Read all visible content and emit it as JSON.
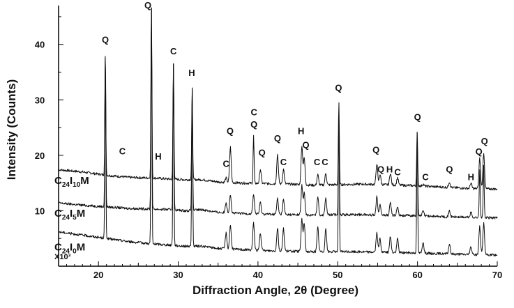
{
  "chart_data": {
    "type": "line",
    "title": "",
    "xlabel": "Diffraction Angle, 2θ (Degree)",
    "ylabel": "Intensity (Counts)",
    "y_multiplier_label": "X10³",
    "xlim": [
      15,
      70
    ],
    "ylim": [
      0,
      47
    ],
    "x_ticks": [
      20,
      30,
      40,
      50,
      60,
      70
    ],
    "y_ticks": [
      10,
      20,
      30,
      40
    ],
    "grid": false,
    "legend": "inline-left",
    "colors": {
      "line": "#111111",
      "axis": "#000000",
      "text": "#111111"
    },
    "peaks": [
      20.86,
      26.64,
      29.4,
      31.75,
      36.0,
      36.54,
      39.45,
      40.3,
      42.45,
      43.2,
      45.5,
      45.8,
      47.5,
      48.5,
      50.14,
      54.9,
      55.3,
      56.6,
      57.5,
      59.96,
      60.7,
      64.0,
      66.7,
      67.8,
      68.3
    ],
    "series": [
      {
        "name": "C24I10M",
        "base": "C",
        "sub1": "24",
        "mid": "I",
        "sub2": "10",
        "tail": "M",
        "baseline": [
          [
            15,
            17.4
          ],
          [
            18,
            17.0
          ],
          [
            21,
            16.4
          ],
          [
            24,
            16.0
          ],
          [
            27,
            15.9
          ],
          [
            29,
            15.7
          ],
          [
            31,
            15.6
          ],
          [
            33,
            15.6
          ],
          [
            35,
            15.2
          ],
          [
            38,
            15.0
          ],
          [
            41,
            14.9
          ],
          [
            44,
            14.8
          ],
          [
            47,
            14.6
          ],
          [
            50,
            14.7
          ],
          [
            53,
            14.8
          ],
          [
            56,
            14.7
          ],
          [
            60,
            14.5
          ],
          [
            64,
            14.2
          ],
          [
            67,
            14.0
          ],
          [
            70,
            13.9
          ]
        ],
        "intensities": [
          38,
          47,
          36.5,
          32,
          15.9,
          21.5,
          23.5,
          17.5,
          20.2,
          17.5,
          21.7,
          19.5,
          16.5,
          16.8,
          29.5,
          18.5,
          16.6,
          16.8,
          16.0,
          24.2,
          14.8,
          15.2,
          15.0,
          19.5,
          20.5
        ]
      },
      {
        "name": "C24I5M",
        "base": "C",
        "sub1": "24",
        "mid": "I",
        "sub2": "5",
        "tail": "M",
        "baseline": [
          [
            15,
            11.4
          ],
          [
            18,
            11.0
          ],
          [
            21,
            10.7
          ],
          [
            24,
            10.4
          ],
          [
            27,
            10.3
          ],
          [
            29,
            10.2
          ],
          [
            31,
            10.0
          ],
          [
            33,
            10.2
          ],
          [
            35,
            9.7
          ],
          [
            38,
            9.5
          ],
          [
            41,
            9.4
          ],
          [
            44,
            9.3
          ],
          [
            47,
            9.2
          ],
          [
            50,
            9.3
          ],
          [
            53,
            9.3
          ],
          [
            56,
            9.2
          ],
          [
            60,
            9.1
          ],
          [
            64,
            8.9
          ],
          [
            67,
            8.8
          ],
          [
            70,
            8.7
          ]
        ],
        "intensities": [
          38,
          47,
          36.5,
          32,
          11.5,
          13.0,
          13.0,
          11.5,
          12.2,
          12.0,
          14.5,
          13.2,
          12.6,
          12.4,
          27.0,
          12.5,
          11.2,
          11.5,
          10.8,
          24.2,
          10.0,
          10.0,
          9.7,
          17.5,
          18.0
        ]
      },
      {
        "name": "C24I0M",
        "base": "C",
        "sub1": "24",
        "mid": "I",
        "sub2": "0",
        "tail": "M",
        "baseline": [
          [
            15,
            6.2
          ],
          [
            18,
            5.6
          ],
          [
            21,
            5.0
          ],
          [
            24,
            4.4
          ],
          [
            27,
            4.0
          ],
          [
            29,
            3.8
          ],
          [
            31,
            3.6
          ],
          [
            33,
            3.6
          ],
          [
            35,
            3.2
          ],
          [
            38,
            3.0
          ],
          [
            41,
            2.8
          ],
          [
            44,
            2.7
          ],
          [
            47,
            2.6
          ],
          [
            50,
            2.6
          ],
          [
            53,
            2.6
          ],
          [
            56,
            2.5
          ],
          [
            60,
            2.4
          ],
          [
            64,
            2.2
          ],
          [
            67,
            2.1
          ],
          [
            70,
            2.0
          ]
        ],
        "intensities": [
          38,
          47,
          36.5,
          32,
          6.0,
          7.5,
          7.8,
          6.0,
          7.0,
          6.8,
          8.5,
          7.8,
          7.0,
          6.8,
          27.0,
          6.0,
          5.0,
          5.4,
          5.0,
          24.2,
          4.4,
          4.0,
          3.6,
          7.2,
          7.8
        ]
      }
    ],
    "annotations": [
      {
        "text": "Q",
        "x": 20.86,
        "y": 40.3
      },
      {
        "text": "Q",
        "x": 26.2,
        "y": 46.5
      },
      {
        "text": "C",
        "x": 29.4,
        "y": 38.2
      },
      {
        "text": "H",
        "x": 31.7,
        "y": 34.3
      },
      {
        "text": "C",
        "x": 23.0,
        "y": 20.2
      },
      {
        "text": "H",
        "x": 27.5,
        "y": 19.2
      },
      {
        "text": "C",
        "x": 36.0,
        "y": 17.9
      },
      {
        "text": "Q",
        "x": 36.5,
        "y": 23.8
      },
      {
        "text": "C",
        "x": 39.5,
        "y": 27.2
      },
      {
        "text": "Q",
        "x": 39.5,
        "y": 25.0
      },
      {
        "text": "Q",
        "x": 40.5,
        "y": 19.9
      },
      {
        "text": "Q",
        "x": 42.45,
        "y": 22.5
      },
      {
        "text": "C",
        "x": 43.2,
        "y": 18.2
      },
      {
        "text": "H",
        "x": 45.4,
        "y": 23.8
      },
      {
        "text": "Q",
        "x": 46.0,
        "y": 21.3
      },
      {
        "text": "C",
        "x": 47.4,
        "y": 18.2
      },
      {
        "text": "C",
        "x": 48.4,
        "y": 18.2
      },
      {
        "text": "Q",
        "x": 50.1,
        "y": 31.6
      },
      {
        "text": "Q",
        "x": 54.8,
        "y": 20.4
      },
      {
        "text": "Q",
        "x": 55.4,
        "y": 16.9
      },
      {
        "text": "H",
        "x": 56.5,
        "y": 16.9
      },
      {
        "text": "C",
        "x": 57.5,
        "y": 16.4
      },
      {
        "text": "Q",
        "x": 60.0,
        "y": 26.3
      },
      {
        "text": "C",
        "x": 61.0,
        "y": 15.5
      },
      {
        "text": "Q",
        "x": 64.0,
        "y": 16.9
      },
      {
        "text": "H",
        "x": 66.7,
        "y": 15.5
      },
      {
        "text": "Q",
        "x": 67.7,
        "y": 20.1
      },
      {
        "text": "Q",
        "x": 68.4,
        "y": 22.0
      }
    ]
  }
}
